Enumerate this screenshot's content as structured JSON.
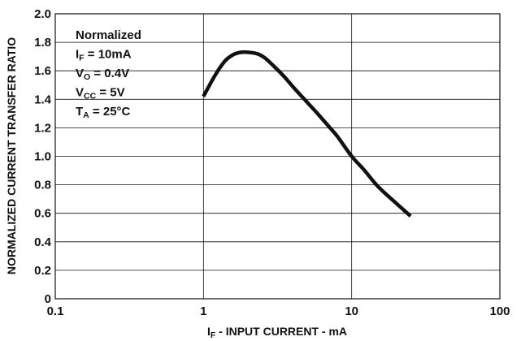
{
  "chart_data": {
    "type": "line",
    "xscale": "log",
    "xlim": [
      0.1,
      100
    ],
    "ylim": [
      0,
      2.0
    ],
    "grid": true,
    "xlabel": {
      "main": "I",
      "sub": "F",
      "rest": " - INPUT CURRENT - mA"
    },
    "ylabel": "NORMALIZED CURRENT TRANSFER RATIO",
    "xticks": [
      {
        "value": 0.1,
        "label": "0.1"
      },
      {
        "value": 1,
        "label": "1"
      },
      {
        "value": 10,
        "label": "10"
      },
      {
        "value": 100,
        "label": "100"
      }
    ],
    "yticks": [
      {
        "value": 0,
        "label": "0"
      },
      {
        "value": 0.2,
        "label": "0.2"
      },
      {
        "value": 0.4,
        "label": "0.4"
      },
      {
        "value": 0.6,
        "label": "0.6"
      },
      {
        "value": 0.8,
        "label": "0.8"
      },
      {
        "value": 1.0,
        "label": "1.0"
      },
      {
        "value": 1.2,
        "label": "1.2"
      },
      {
        "value": 1.4,
        "label": "1.4"
      },
      {
        "value": 1.6,
        "label": "1.6"
      },
      {
        "value": 1.8,
        "label": "1.8"
      },
      {
        "value": 2.0,
        "label": "2.0"
      }
    ],
    "annotation": [
      {
        "main": "Normalized",
        "sub": "",
        "rest": ""
      },
      {
        "main": "I",
        "sub": "F",
        "rest": " = 10mA"
      },
      {
        "main": "V",
        "sub": "O",
        "rest": " = 0.4V"
      },
      {
        "main": "V",
        "sub": "CC",
        "rest": " = 5V"
      },
      {
        "main": "T",
        "sub": "A",
        "rest": " = 25°C"
      }
    ],
    "series": [
      {
        "color": "#111111",
        "x": [
          1.0,
          1.2,
          1.4,
          1.6,
          1.8,
          2.0,
          2.3,
          2.6,
          3.0,
          3.5,
          4.0,
          5.0,
          6.0,
          7.0,
          8.0,
          10.0,
          12.0,
          15.0,
          20.0,
          25.0
        ],
        "y": [
          1.42,
          1.57,
          1.67,
          1.715,
          1.73,
          1.73,
          1.72,
          1.69,
          1.63,
          1.56,
          1.49,
          1.38,
          1.29,
          1.21,
          1.14,
          1.0,
          0.91,
          0.79,
          0.67,
          0.58
        ]
      }
    ]
  }
}
